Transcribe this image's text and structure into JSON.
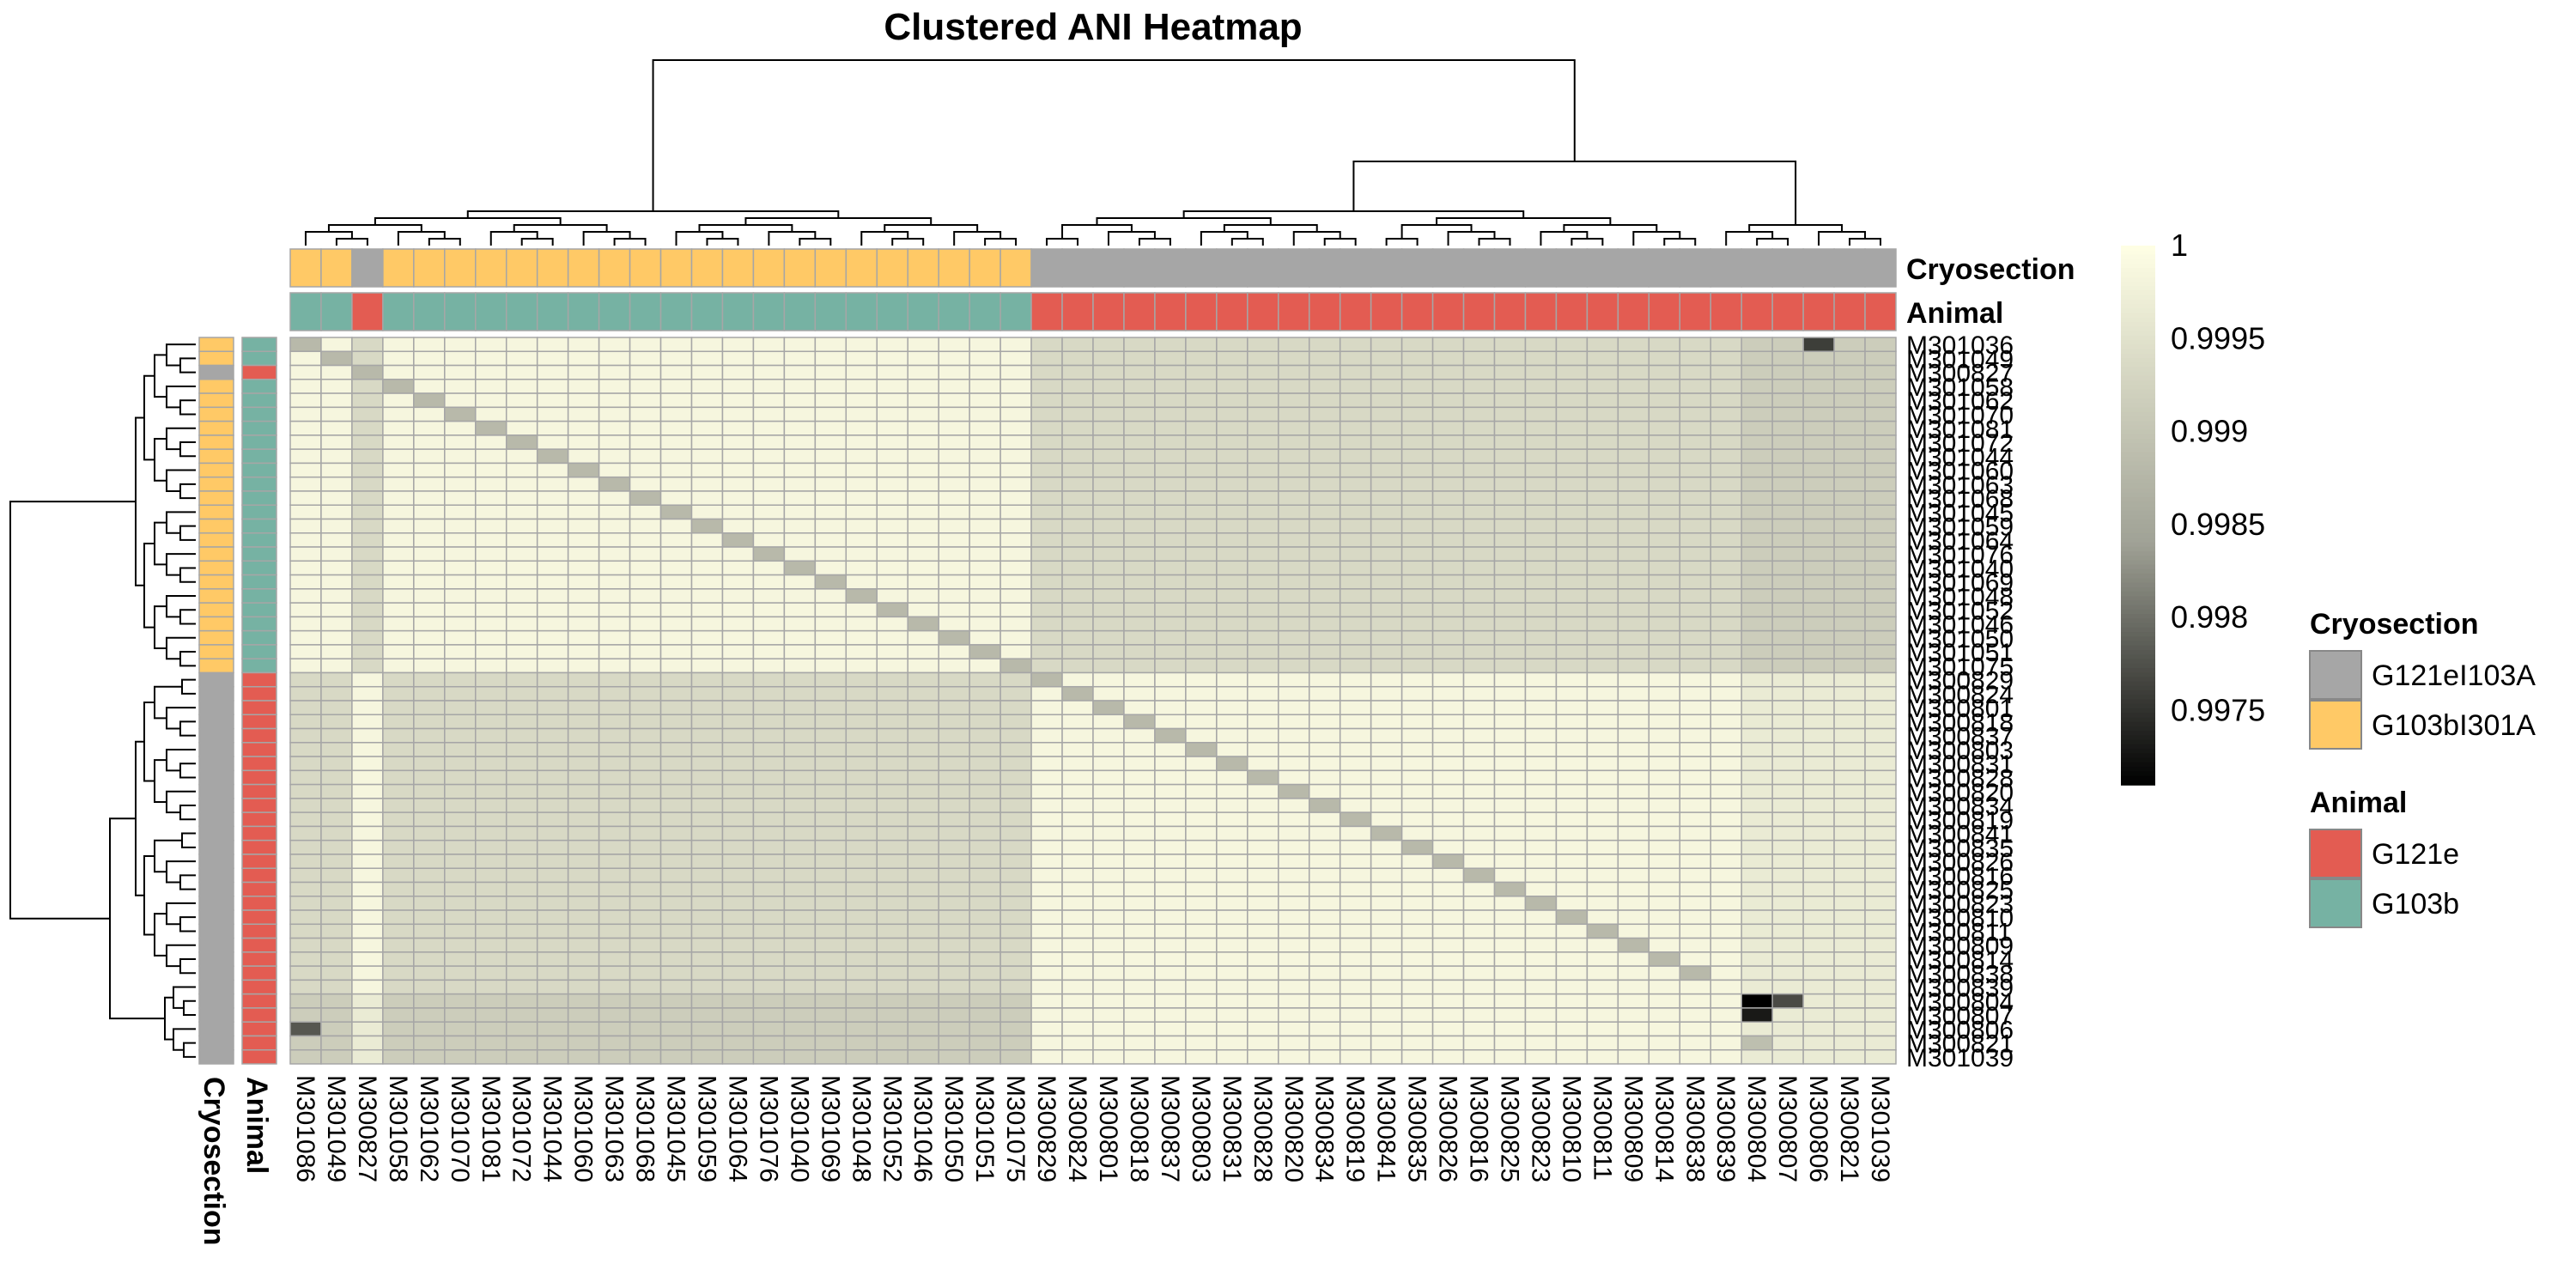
{
  "chart_data": {
    "type": "heatmap",
    "title": "Clustered ANI Heatmap",
    "rows": [
      "M301036",
      "M301049",
      "M300827",
      "M301058",
      "M301062",
      "M301070",
      "M301081",
      "M301072",
      "M301044",
      "M301060",
      "M301063",
      "M301068",
      "M301045",
      "M301059",
      "M301064",
      "M301076",
      "M301040",
      "M301069",
      "M301048",
      "M301052",
      "M301046",
      "M301050",
      "M301051",
      "M301075",
      "M300829",
      "M300824",
      "M300801",
      "M300818",
      "M300837",
      "M300803",
      "M300831",
      "M300828",
      "M300820",
      "M300834",
      "M300819",
      "M300841",
      "M300835",
      "M300826",
      "M300816",
      "M300825",
      "M300823",
      "M300810",
      "M300811",
      "M300809",
      "M300814",
      "M300838",
      "M300839",
      "M300804",
      "M300807",
      "M300806",
      "M300821",
      "M301039"
    ],
    "columns": [
      "M301086",
      "M301049",
      "M300827",
      "M301058",
      "M301062",
      "M301070",
      "M301081",
      "M301072",
      "M301044",
      "M301060",
      "M301063",
      "M301068",
      "M301045",
      "M301059",
      "M301064",
      "M301076",
      "M301040",
      "M301069",
      "M301048",
      "M301052",
      "M301046",
      "M301050",
      "M301051",
      "M301075",
      "M300829",
      "M300824",
      "M300801",
      "M300818",
      "M300837",
      "M300803",
      "M300831",
      "M300828",
      "M300820",
      "M300834",
      "M300819",
      "M300841",
      "M300835",
      "M300826",
      "M300816",
      "M300825",
      "M300823",
      "M300810",
      "M300811",
      "M300809",
      "M300814",
      "M300838",
      "M300839",
      "M300804",
      "M300807",
      "M300806",
      "M300821",
      "M301039"
    ],
    "column_groups": {
      "Cryosection": [
        "G103bI301A",
        "G103bI301A",
        "G121eI103A",
        "G103bI301A",
        "G103bI301A",
        "G103bI301A",
        "G103bI301A",
        "G103bI301A",
        "G103bI301A",
        "G103bI301A",
        "G103bI301A",
        "G103bI301A",
        "G103bI301A",
        "G103bI301A",
        "G103bI301A",
        "G103bI301A",
        "G103bI301A",
        "G103bI301A",
        "G103bI301A",
        "G103bI301A",
        "G103bI301A",
        "G103bI301A",
        "G103bI301A",
        "G103bI301A",
        "G121eI103A",
        "G121eI103A",
        "G121eI103A",
        "G121eI103A",
        "G121eI103A",
        "G121eI103A",
        "G121eI103A",
        "G121eI103A",
        "G121eI103A",
        "G121eI103A",
        "G121eI103A",
        "G121eI103A",
        "G121eI103A",
        "G121eI103A",
        "G121eI103A",
        "G121eI103A",
        "G121eI103A",
        "G121eI103A",
        "G121eI103A",
        "G121eI103A",
        "G121eI103A",
        "G121eI103A",
        "G121eI103A",
        "G121eI103A",
        "G121eI103A",
        "G121eI103A",
        "G121eI103A",
        "G121eI103A"
      ],
      "Animal": [
        "G103b",
        "G103b",
        "G121e",
        "G103b",
        "G103b",
        "G103b",
        "G103b",
        "G103b",
        "G103b",
        "G103b",
        "G103b",
        "G103b",
        "G103b",
        "G103b",
        "G103b",
        "G103b",
        "G103b",
        "G103b",
        "G103b",
        "G103b",
        "G103b",
        "G103b",
        "G103b",
        "G103b",
        "G121e",
        "G121e",
        "G121e",
        "G121e",
        "G121e",
        "G121e",
        "G121e",
        "G121e",
        "G121e",
        "G121e",
        "G121e",
        "G121e",
        "G121e",
        "G121e",
        "G121e",
        "G121e",
        "G121e",
        "G121e",
        "G121e",
        "G121e",
        "G121e",
        "G121e",
        "G121e",
        "G121e",
        "G121e",
        "G121e",
        "G121e",
        "G121e"
      ]
    },
    "value_range": [
      0.9971,
      1
    ],
    "color_ticks": [
      1,
      0.9995,
      0.999,
      0.9985,
      0.998,
      0.9975
    ],
    "baseline_values": {
      "same_group": 0.99985,
      "cross_group": 0.99935
    },
    "diagonal_value": 0.9988,
    "notable_cells": [
      {
        "row": "M301036",
        "col": "M300806",
        "value": 0.9976
      },
      {
        "row": "M300804",
        "col": "M300804",
        "value": 0.9971
      },
      {
        "row": "M300804",
        "col": "M300807",
        "value": 0.9977
      },
      {
        "row": "M300807",
        "col": "M300804",
        "value": 0.9973
      },
      {
        "row": "M300806",
        "col": "M301086",
        "value": 0.9978
      },
      {
        "row": "M300821",
        "col": "M300804",
        "value": 0.9989
      }
    ]
  },
  "annotation_labels": {
    "cryosection": "Cryosection",
    "animal": "Animal"
  },
  "legends": {
    "cryosection": {
      "title": "Cryosection",
      "items": [
        {
          "label": "G121eI103A",
          "color": "#a6a6a6"
        },
        {
          "label": "G103bI301A",
          "color": "#ffc966"
        }
      ]
    },
    "animal": {
      "title": "Animal",
      "items": [
        {
          "label": "G121e",
          "color": "#e35c52"
        },
        {
          "label": "G103b",
          "color": "#76b2a3"
        }
      ]
    }
  },
  "colors": {
    "cell_border": "#a6a6a6",
    "low": "#000000",
    "mid": "#a0a296",
    "high": "#ffffe5"
  }
}
